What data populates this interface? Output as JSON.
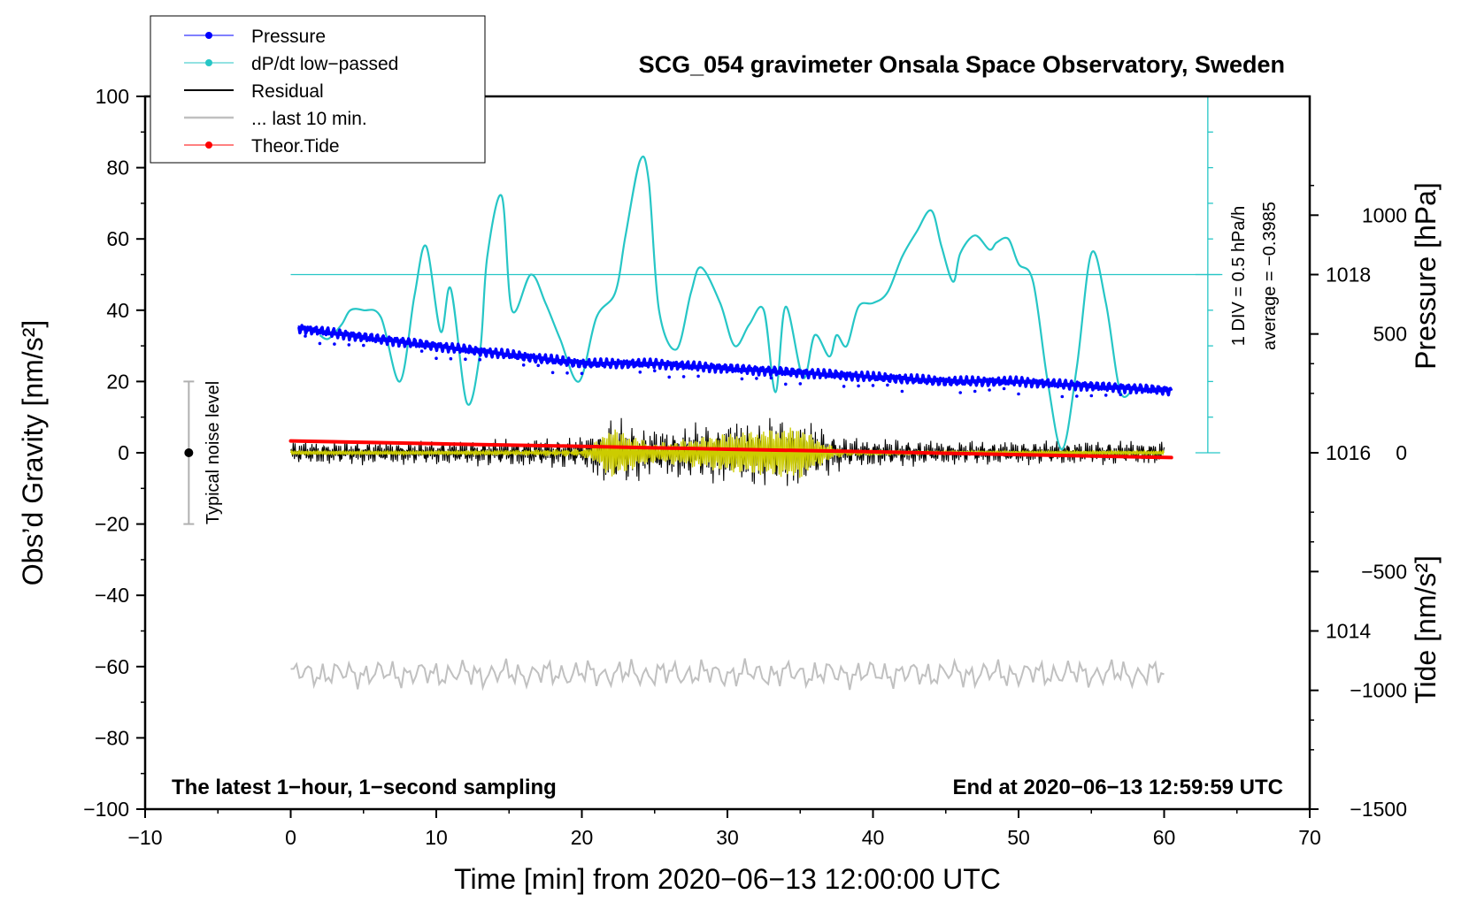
{
  "colors": {
    "pressure": "#0000ff",
    "dpdt": "#26c6c6",
    "residual": "#000000",
    "last10": "#c0c0c0",
    "tide": "#ff0000",
    "filtered": "#cccc00"
  },
  "chart_data": {
    "type": "line",
    "title": "SCG_054 gravimeter Onsala Space Observatory, Sweden",
    "xlabel": "Time [min] from 2020−06−13 12:00:00 UTC",
    "ylabel_left": "Obs’d Gravity [nm/s²]",
    "ylabel_right_top": "Pressure [hPa]",
    "ylabel_right_bottom": "Tide [nm/s²]",
    "xlim": [
      -10,
      70
    ],
    "ylim": [
      -100,
      100
    ],
    "pressure_ylim": [
      1012,
      1020
    ],
    "tide_ylim": [
      -1500,
      1500
    ],
    "x_ticks": [
      "−10",
      "0",
      "10",
      "20",
      "30",
      "40",
      "50",
      "60",
      "70"
    ],
    "x_tick_values": [
      -10,
      0,
      10,
      20,
      30,
      40,
      50,
      60,
      70
    ],
    "y_ticks": [
      "100",
      "80",
      "60",
      "40",
      "20",
      "0",
      "−20",
      "−40",
      "−60",
      "−80",
      "−100"
    ],
    "y_tick_values": [
      100,
      80,
      60,
      40,
      20,
      0,
      -20,
      -40,
      -60,
      -80,
      -100
    ],
    "pressure_ticks": [
      "1018",
      "1016",
      "1014"
    ],
    "pressure_tick_values": [
      1018,
      1016,
      1014
    ],
    "tide_ticks": [
      "1000",
      "500",
      "0",
      "−500",
      "−1000",
      "−1500"
    ],
    "tide_tick_values": [
      1000,
      500,
      0,
      -500,
      -1000,
      -1500
    ],
    "legend": [
      "Pressure",
      "dP/dt low−passed",
      "Residual",
      "... last 10 min.",
      "Theor.Tide"
    ],
    "legend_position": "top-left",
    "notes": {
      "left_bottom": "The latest 1−hour, 1−second sampling",
      "right_bottom": "End at 2020−06−13 12:59:59 UTC",
      "noise_label": "Typical noise level",
      "dpdt_scale": "1 DIV = 0.5 hPa/h",
      "dpdt_average": "average = −0.3985"
    },
    "noise_bar": {
      "x": -7,
      "center": 0,
      "low": -20,
      "high": 20
    },
    "dpdt_reference_level": 50,
    "series": [
      {
        "name": "Pressure",
        "unit": "hPa",
        "x": [
          0.5,
          5,
          10,
          15,
          20,
          25,
          30,
          35,
          40,
          45,
          50,
          55,
          60.5
        ],
        "values": [
          1017.4,
          1017.3,
          1017.2,
          1017.1,
          1017.0,
          1017.0,
          1016.95,
          1016.9,
          1016.85,
          1016.8,
          1016.8,
          1016.75,
          1016.7
        ]
      },
      {
        "name": "dP/dt low−passed",
        "unit": "gravity-axis scale",
        "x": [
          2,
          2.6,
          3.5,
          4.1,
          5,
          6.2,
          7.5,
          8.5,
          9.3,
          10.3,
          11,
          12.1,
          13,
          13.5,
          14.5,
          15.2,
          16.5,
          17.5,
          18.5,
          19.8,
          21,
          22.3,
          23,
          24,
          24.6,
          25.3,
          26.5,
          27.5,
          28.2,
          29.5,
          30.5,
          31.5,
          32.5,
          33.3,
          34,
          35.2,
          36,
          37,
          37.5,
          38.2,
          39,
          40,
          41,
          42,
          43,
          44,
          44.7,
          45.5,
          46,
          47,
          48,
          48.5,
          49.3,
          50,
          51,
          52,
          53,
          54,
          55,
          56,
          57,
          58
        ],
        "values": [
          33,
          32,
          36,
          40,
          40,
          38,
          20,
          44,
          58,
          34,
          46,
          14,
          28,
          55,
          72,
          40,
          50,
          42,
          32,
          20,
          38,
          45,
          61,
          82,
          76,
          40,
          29,
          45,
          52,
          42,
          30,
          36,
          40,
          17,
          41,
          21,
          33,
          27,
          33,
          30,
          41,
          42,
          45,
          55,
          62,
          68,
          58,
          48,
          56,
          61,
          57,
          59,
          60,
          53,
          48,
          20,
          1,
          24,
          56,
          42,
          17,
          19
        ]
      },
      {
        "name": "Residual",
        "unit": "nm/s²",
        "x": [
          0,
          10,
          20,
          22,
          25,
          30,
          35,
          38,
          45,
          50,
          55,
          60
        ],
        "values": [
          0,
          0,
          0,
          0,
          0,
          0,
          0,
          0,
          0,
          0,
          0,
          0
        ],
        "amplitude": [
          3,
          3,
          4,
          9,
          6,
          8,
          9,
          4,
          3,
          3,
          3,
          3
        ]
      },
      {
        "name": "... last 10 min.",
        "unit": "nm/s²",
        "x": [
          0,
          60
        ],
        "values": [
          -62,
          -62
        ]
      },
      {
        "name": "Theor.Tide",
        "unit": "nm/s²",
        "x": [
          0,
          10,
          20,
          30,
          40,
          50,
          60.5
        ],
        "values": [
          50,
          38,
          27,
          15,
          4,
          -8,
          -20
        ]
      }
    ]
  }
}
